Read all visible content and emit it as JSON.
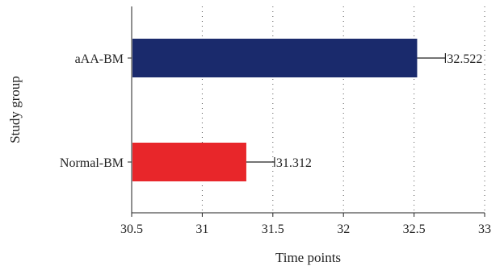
{
  "chart_data": {
    "type": "bar",
    "orientation": "horizontal",
    "categories": [
      "aAA-BM",
      "Normal-BM"
    ],
    "values": [
      32.522,
      31.312
    ],
    "error": [
      0.2,
      0.2
    ],
    "colors": [
      "#1a2a6c",
      "#e8262a"
    ],
    "data_labels": [
      "32.522",
      "31.312"
    ],
    "xlabel": "Time points",
    "ylabel": "Study group",
    "xlim": [
      30.5,
      33
    ],
    "xticks": [
      30.5,
      31,
      31.5,
      32,
      32.5,
      33
    ],
    "xtick_labels": [
      "30.5",
      "31",
      "31.5",
      "32",
      "32.5",
      "33"
    ],
    "grid": "vertical-dotted"
  }
}
